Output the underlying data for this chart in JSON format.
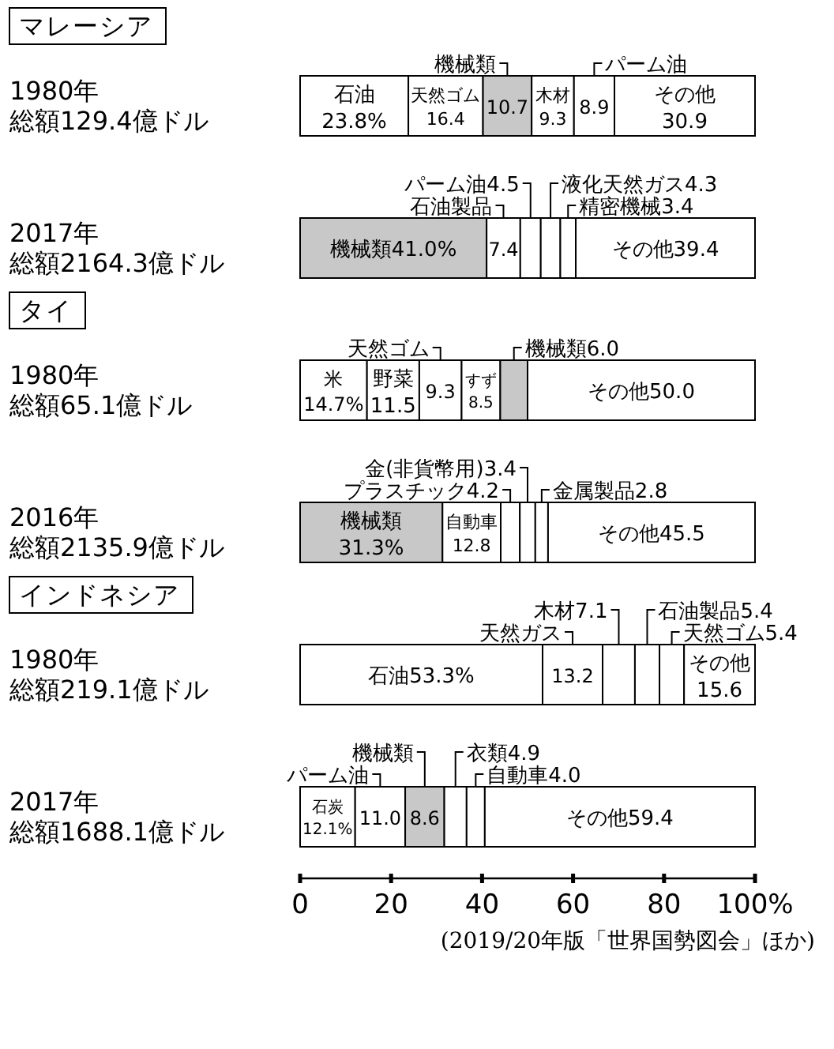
{
  "chart_data": [
    {
      "type": "bar",
      "stacked": true,
      "orientation": "horizontal",
      "title": "マレーシア",
      "categories": [
        "1980年総額129.4億ドル"
      ],
      "xlim": [
        0,
        100
      ],
      "tick_labels": "y",
      "series": [
        {
          "name": "石油",
          "color": "#ffffff",
          "values": [
            23.8
          ],
          "value_labels": [
            "23.8%"
          ]
        },
        {
          "name": "天然ゴム",
          "color": "#ffffff",
          "values": [
            16.4
          ],
          "value_labels": [
            "16.4"
          ]
        },
        {
          "name": "機械類",
          "color": "#c8c8c8",
          "values": [
            10.7
          ],
          "value_labels": [
            "10.7"
          ]
        },
        {
          "name": "木材",
          "color": "#ffffff",
          "values": [
            9.3
          ],
          "value_labels": [
            "9.3"
          ]
        },
        {
          "name": "パーム油",
          "color": "#ffffff",
          "values": [
            8.9
          ],
          "value_labels": [
            "8.9"
          ]
        },
        {
          "name": "その他",
          "color": "#ffffff",
          "values": [
            30.9
          ],
          "value_labels": [
            "30.9"
          ]
        }
      ]
    },
    {
      "type": "bar",
      "stacked": true,
      "orientation": "horizontal",
      "categories": [
        "2017年総額2164.3億ドル"
      ],
      "xlim": [
        0,
        100
      ],
      "tick_labels": "y",
      "series": [
        {
          "name": "機械類",
          "color": "#c8c8c8",
          "values": [
            41.0
          ],
          "value_labels": [
            "41.0%"
          ]
        },
        {
          "name": "石油製品",
          "color": "#ffffff",
          "values": [
            7.4
          ],
          "value_labels": [
            "7.4"
          ]
        },
        {
          "name": "パーム油",
          "color": "#ffffff",
          "values": [
            4.5
          ],
          "value_labels": [
            "4.5"
          ]
        },
        {
          "name": "液化天然ガス",
          "color": "#ffffff",
          "values": [
            4.3
          ],
          "value_labels": [
            "4.3"
          ]
        },
        {
          "name": "精密機械",
          "color": "#ffffff",
          "values": [
            3.4
          ],
          "value_labels": [
            "3.4"
          ]
        },
        {
          "name": "その他",
          "color": "#ffffff",
          "values": [
            39.4
          ],
          "value_labels": [
            "39.4"
          ]
        }
      ]
    },
    {
      "type": "bar",
      "stacked": true,
      "orientation": "horizontal",
      "title": "タイ",
      "categories": [
        "1980年総額65.1億ドル"
      ],
      "xlim": [
        0,
        100
      ],
      "tick_labels": "y",
      "series": [
        {
          "name": "米",
          "color": "#ffffff",
          "values": [
            14.7
          ],
          "value_labels": [
            "14.7%"
          ]
        },
        {
          "name": "野菜",
          "color": "#ffffff",
          "values": [
            11.5
          ],
          "value_labels": [
            "11.5"
          ]
        },
        {
          "name": "天然ゴム",
          "color": "#ffffff",
          "values": [
            9.3
          ],
          "value_labels": [
            "9.3"
          ]
        },
        {
          "name": "すず",
          "color": "#ffffff",
          "values": [
            8.5
          ],
          "value_labels": [
            "8.5"
          ]
        },
        {
          "name": "機械類",
          "color": "#c8c8c8",
          "values": [
            6.0
          ],
          "value_labels": [
            "6.0"
          ]
        },
        {
          "name": "その他",
          "color": "#ffffff",
          "values": [
            50.0
          ],
          "value_labels": [
            "50.0"
          ]
        }
      ]
    },
    {
      "type": "bar",
      "stacked": true,
      "orientation": "horizontal",
      "categories": [
        "2016年総額2135.9億ドル"
      ],
      "xlim": [
        0,
        100
      ],
      "tick_labels": "y",
      "series": [
        {
          "name": "機械類",
          "color": "#c8c8c8",
          "values": [
            31.3
          ],
          "value_labels": [
            "31.3%"
          ]
        },
        {
          "name": "自動車",
          "color": "#ffffff",
          "values": [
            12.8
          ],
          "value_labels": [
            "12.8"
          ]
        },
        {
          "name": "プラスチック",
          "color": "#ffffff",
          "values": [
            4.2
          ],
          "value_labels": [
            "4.2"
          ]
        },
        {
          "name": "金(非貨幣用)",
          "color": "#ffffff",
          "values": [
            3.4
          ],
          "value_labels": [
            "3.4"
          ]
        },
        {
          "name": "金属製品",
          "color": "#ffffff",
          "values": [
            2.8
          ],
          "value_labels": [
            "2.8"
          ]
        },
        {
          "name": "その他",
          "color": "#ffffff",
          "values": [
            45.5
          ],
          "value_labels": [
            "45.5"
          ]
        }
      ]
    },
    {
      "type": "bar",
      "stacked": true,
      "orientation": "horizontal",
      "title": "インドネシア",
      "categories": [
        "1980年総額219.1億ドル"
      ],
      "xlim": [
        0,
        100
      ],
      "tick_labels": "y",
      "series": [
        {
          "name": "石油",
          "color": "#ffffff",
          "values": [
            53.3
          ],
          "value_labels": [
            "53.3%"
          ]
        },
        {
          "name": "天然ガス",
          "color": "#ffffff",
          "values": [
            13.2
          ],
          "value_labels": [
            "13.2"
          ]
        },
        {
          "name": "木材",
          "color": "#ffffff",
          "values": [
            7.1
          ],
          "value_labels": [
            "7.1"
          ]
        },
        {
          "name": "石油製品",
          "color": "#ffffff",
          "values": [
            5.4
          ],
          "value_labels": [
            "5.4"
          ]
        },
        {
          "name": "天然ゴム",
          "color": "#ffffff",
          "values": [
            5.4
          ],
          "value_labels": [
            "5.4"
          ]
        },
        {
          "name": "その他",
          "color": "#ffffff",
          "values": [
            15.6
          ],
          "value_labels": [
            "15.6"
          ]
        }
      ]
    },
    {
      "type": "bar",
      "stacked": true,
      "orientation": "horizontal",
      "categories": [
        "2017年総額1688.1億ドル"
      ],
      "xlim": [
        0,
        100
      ],
      "xticks": [
        0,
        20,
        40,
        60,
        80,
        {
          "value": 100,
          "label": "100%"
        }
      ],
      "annotations": [
        "(2019/20年版「世界国勢図会」ほか)"
      ],
      "series": [
        {
          "name": "石炭",
          "color": "#ffffff",
          "values": [
            12.1
          ],
          "value_labels": [
            "12.1%"
          ]
        },
        {
          "name": "パーム油",
          "color": "#ffffff",
          "values": [
            11.0
          ],
          "value_labels": [
            "11.0"
          ]
        },
        {
          "name": "機械類",
          "color": "#c8c8c8",
          "values": [
            8.6
          ],
          "value_labels": [
            "8.6"
          ]
        },
        {
          "name": "衣類",
          "color": "#ffffff",
          "values": [
            4.9
          ],
          "value_labels": [
            "4.9"
          ]
        },
        {
          "name": "自動車",
          "color": "#ffffff",
          "values": [
            4.0
          ],
          "value_labels": [
            "4.0"
          ]
        },
        {
          "name": "その他",
          "color": "#ffffff",
          "values": [
            59.4
          ],
          "value_labels": [
            "59.4"
          ]
        }
      ]
    }
  ]
}
